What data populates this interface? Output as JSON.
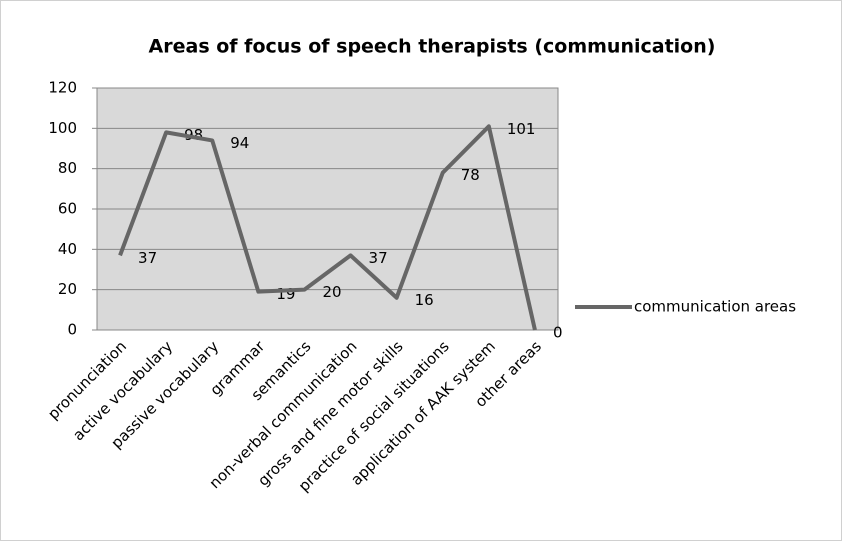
{
  "chart_data": {
    "type": "line",
    "title": "Areas of focus of speech therapists (communication)",
    "categories": [
      "pronunciation",
      "active vocabulary",
      "passive vocabulary",
      "grammar",
      "semantics",
      "non-verbal communication",
      "gross and fine motor skills",
      "practice of social situations",
      "application of AAK system",
      "other areas"
    ],
    "series": [
      {
        "name": "communication areas",
        "color": "#666666",
        "values": [
          37,
          98,
          94,
          19,
          20,
          37,
          16,
          78,
          101,
          0
        ]
      }
    ],
    "ylim": [
      0,
      120
    ],
    "yticks": [
      0,
      20,
      40,
      60,
      80,
      100,
      120
    ],
    "grid": true,
    "legend": "right",
    "data_labels": true
  }
}
